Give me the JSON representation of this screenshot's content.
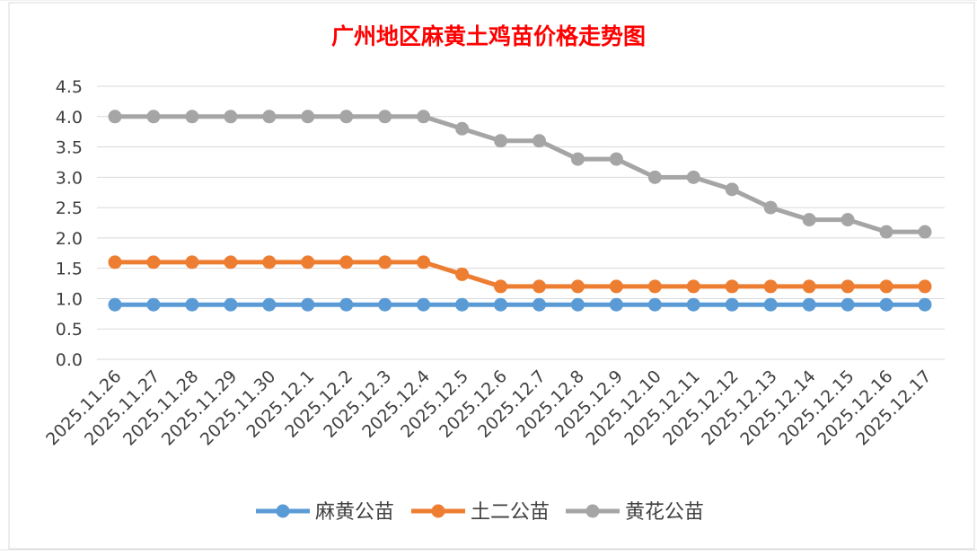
{
  "chart_data": {
    "type": "line",
    "title": "广州地区麻黄土鸡苗价格走势图",
    "xlabel": "",
    "ylabel": "",
    "categories": [
      "2025.11.26",
      "2025.11.27",
      "2025.11.28",
      "2025.11.29",
      "2025.11.30",
      "2025.12.1",
      "2025.12.2",
      "2025.12.3",
      "2025.12.4",
      "2025.12.5",
      "2025.12.6",
      "2025.12.7",
      "2025.12.8",
      "2025.12.9",
      "2025.12.10",
      "2025.12.11",
      "2025.12.12",
      "2025.12.13",
      "2025.12.14",
      "2025.12.15",
      "2025.12.16",
      "2025.12.17"
    ],
    "series": [
      {
        "name": "麻黄公苗",
        "color": "#5b9bd5",
        "values": [
          0.9,
          0.9,
          0.9,
          0.9,
          0.9,
          0.9,
          0.9,
          0.9,
          0.9,
          0.9,
          0.9,
          0.9,
          0.9,
          0.9,
          0.9,
          0.9,
          0.9,
          0.9,
          0.9,
          0.9,
          0.9,
          0.9
        ]
      },
      {
        "name": "土二公苗",
        "color": "#ed7d31",
        "values": [
          1.6,
          1.6,
          1.6,
          1.6,
          1.6,
          1.6,
          1.6,
          1.6,
          1.6,
          1.4,
          1.2,
          1.2,
          1.2,
          1.2,
          1.2,
          1.2,
          1.2,
          1.2,
          1.2,
          1.2,
          1.2,
          1.2
        ]
      },
      {
        "name": "黄花公苗",
        "color": "#a5a5a5",
        "values": [
          4.0,
          4.0,
          4.0,
          4.0,
          4.0,
          4.0,
          4.0,
          4.0,
          4.0,
          3.8,
          3.6,
          3.6,
          3.3,
          3.3,
          3.0,
          3.0,
          2.8,
          2.5,
          2.3,
          2.3,
          2.1,
          2.1
        ]
      }
    ],
    "ylim": [
      0,
      4.5
    ],
    "yticks": [
      "0.0",
      "0.5",
      "1.0",
      "1.5",
      "2.0",
      "2.5",
      "3.0",
      "3.5",
      "4.0",
      "4.5"
    ],
    "grid": true,
    "legend": "bottom",
    "title_color": "#ff0000"
  }
}
